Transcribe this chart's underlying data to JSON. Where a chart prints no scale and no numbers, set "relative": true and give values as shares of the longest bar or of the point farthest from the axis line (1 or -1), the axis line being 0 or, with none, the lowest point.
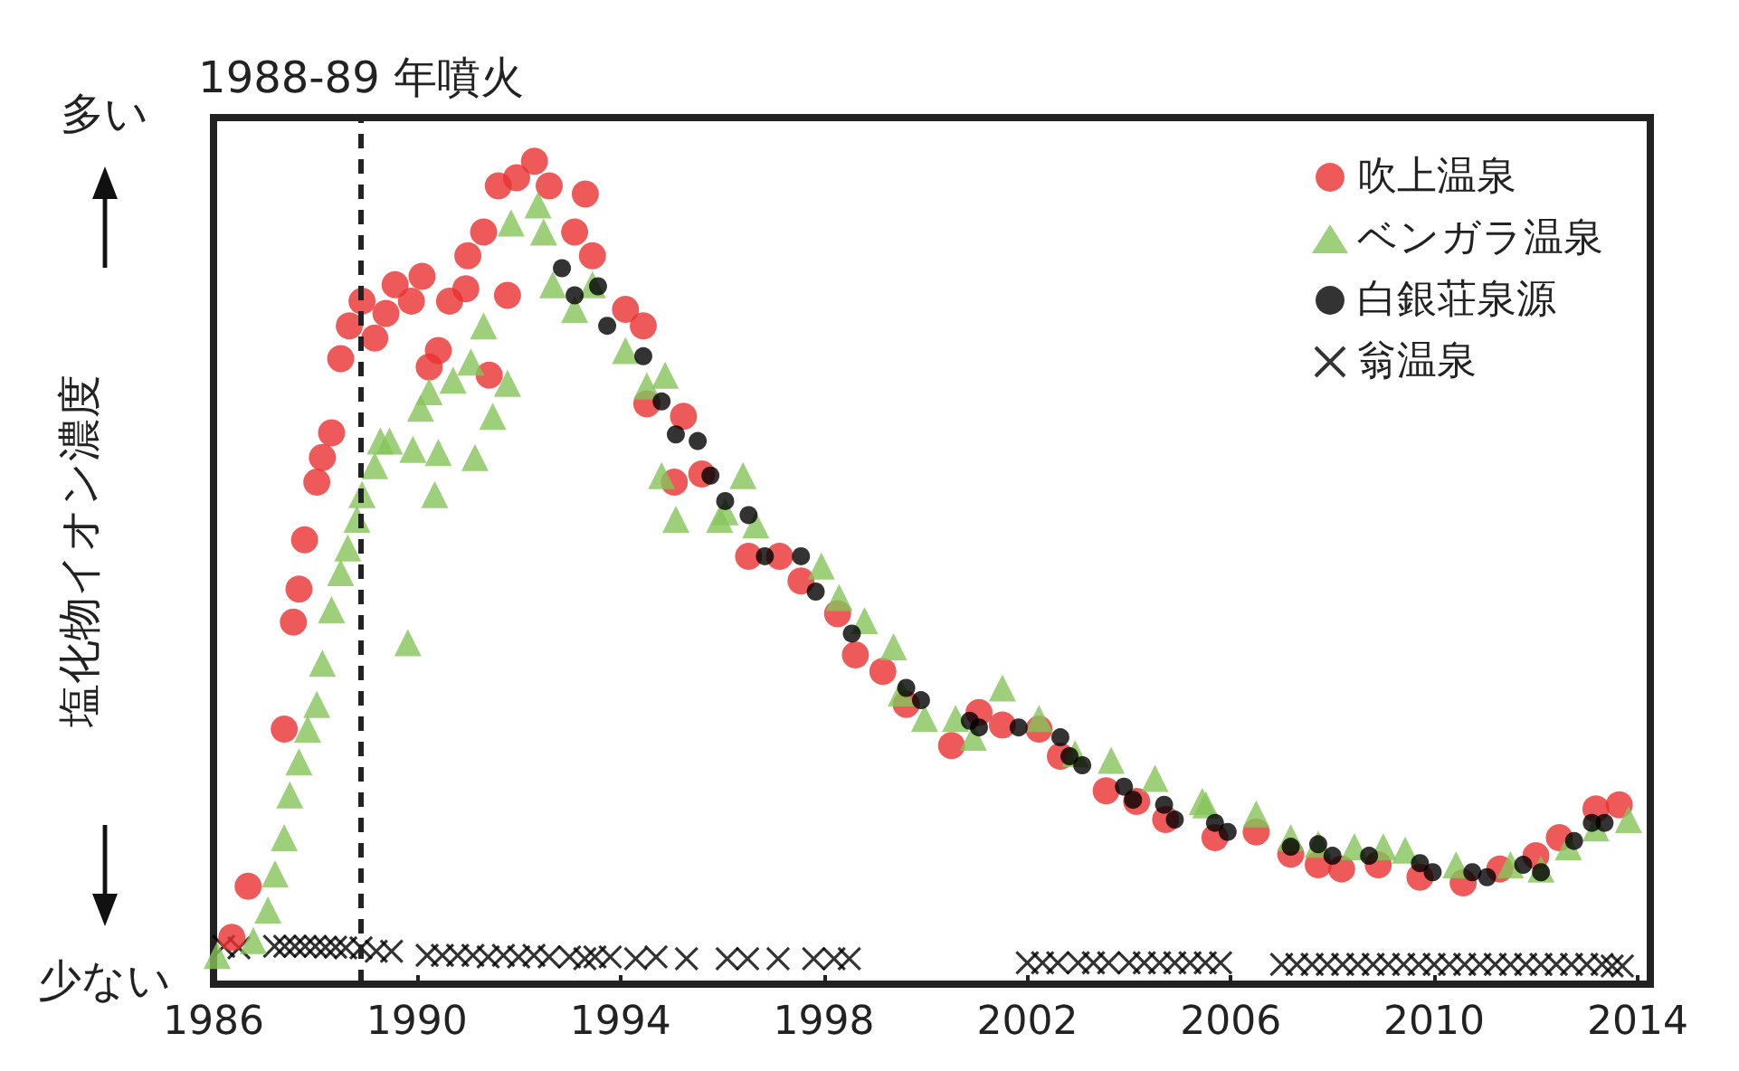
{
  "chart_data": {
    "type": "scatter",
    "relative": true,
    "ylabel": "塩化物イオン濃度",
    "annotations": [
      "多い",
      "少ない"
    ],
    "xlim": [
      1986,
      2014.25
    ],
    "xticks": [
      1986,
      1990,
      1994,
      1998,
      2002,
      2006,
      2010,
      2014
    ],
    "legend": "top right",
    "grid": false,
    "ref_lines": [
      {
        "axis": "x",
        "value": 1988.9,
        "label": "1988-89 年噴火",
        "color": "#222222",
        "line_style": "dashed"
      }
    ],
    "series": [
      {
        "name": "吹上温泉",
        "color": "#e8312f",
        "marker": "circle",
        "x": [
          1986.36,
          1986.68,
          1987.39,
          1987.57,
          1987.68,
          1987.79,
          1988.03,
          1988.14,
          1988.32,
          1988.5,
          1988.67,
          1988.92,
          1989.17,
          1989.39,
          1989.57,
          1989.89,
          1990.1,
          1990.24,
          1990.42,
          1990.64,
          1990.96,
          1991.0,
          1991.31,
          1991.42,
          1991.6,
          1991.78,
          1991.96,
          1992.31,
          1992.6,
          1993.1,
          1993.31,
          1993.45,
          1994.1,
          1994.45,
          1994.52,
          1995.06,
          1995.24,
          1995.6,
          1996.52,
          1997.13,
          1997.55,
          1998.27,
          1998.62,
          1999.16,
          1999.62,
          2000.51,
          2001.05,
          2001.51,
          2002.23,
          2002.65,
          2003.55,
          2004.15,
          2004.72,
          2005.69,
          2006.5,
          2007.18,
          2007.72,
          2008.18,
          2008.9,
          2009.72,
          2010.57,
          2011.29,
          2012.0,
          2012.46,
          2013.18,
          2013.64
        ],
        "values": [
          0.057,
          0.119,
          0.31,
          0.44,
          0.48,
          0.54,
          0.61,
          0.64,
          0.67,
          0.76,
          0.8,
          0.83,
          0.785,
          0.815,
          0.85,
          0.83,
          0.86,
          0.75,
          0.77,
          0.83,
          0.845,
          0.885,
          0.914,
          0.74,
          0.97,
          0.837,
          0.98,
          1.0,
          0.97,
          0.914,
          0.96,
          0.885,
          0.82,
          0.8,
          0.705,
          0.61,
          0.69,
          0.62,
          0.52,
          0.52,
          0.49,
          0.45,
          0.4,
          0.38,
          0.34,
          0.29,
          0.33,
          0.315,
          0.31,
          0.277,
          0.235,
          0.222,
          0.2,
          0.178,
          0.185,
          0.158,
          0.145,
          0.14,
          0.145,
          0.13,
          0.123,
          0.14,
          0.156,
          0.178,
          0.213,
          0.218
        ]
      },
      {
        "name": "ベンガラ温泉",
        "color": "#86c45a",
        "marker": "triangle",
        "x": [
          1986.07,
          1986.78,
          1987.07,
          1987.21,
          1987.39,
          1987.5,
          1987.68,
          1987.85,
          1988.03,
          1988.14,
          1988.32,
          1988.5,
          1988.64,
          1988.82,
          1988.92,
          1989.17,
          1989.28,
          1989.46,
          1989.82,
          1989.92,
          1990.07,
          1990.24,
          1990.35,
          1990.42,
          1990.71,
          1991.06,
          1991.14,
          1991.31,
          1991.49,
          1991.78,
          1991.85,
          1992.38,
          1992.49,
          1992.67,
          1993.1,
          1993.45,
          1994.1,
          1994.52,
          1994.81,
          1994.88,
          1995.09,
          1995.95,
          1996.06,
          1996.41,
          1996.66,
          1997.95,
          1998.3,
          1998.8,
          1999.37,
          1999.52,
          1999.98,
          2000.59,
          2000.94,
          2001.51,
          2002.23,
          2002.94,
          2003.65,
          2004.51,
          2005.44,
          2005.51,
          2006.5,
          2007.18,
          2007.72,
          2008.43,
          2009.0,
          2009.43,
          2010.43,
          2011.5,
          2012.1,
          2012.64,
          2013.18,
          2013.82
        ],
        "values": [
          0.035,
          0.053,
          0.09,
          0.134,
          0.178,
          0.23,
          0.27,
          0.31,
          0.34,
          0.39,
          0.455,
          0.5,
          0.53,
          0.565,
          0.595,
          0.63,
          0.66,
          0.66,
          0.415,
          0.65,
          0.7,
          0.72,
          0.595,
          0.646,
          0.734,
          0.756,
          0.64,
          0.8,
          0.69,
          0.73,
          0.925,
          0.947,
          0.914,
          0.85,
          0.82,
          0.85,
          0.77,
          0.727,
          0.618,
          0.74,
          0.565,
          0.565,
          0.574,
          0.618,
          0.558,
          0.508,
          0.47,
          0.442,
          0.41,
          0.354,
          0.323,
          0.323,
          0.3,
          0.36,
          0.323,
          0.28,
          0.272,
          0.25,
          0.222,
          0.218,
          0.207,
          0.178,
          0.17,
          0.167,
          0.167,
          0.163,
          0.145,
          0.145,
          0.14,
          0.167,
          0.19,
          0.2
        ]
      },
      {
        "name": "白銀荘泉源",
        "color": "#000000",
        "marker": "circle",
        "x": [
          1992.85,
          1993.1,
          1993.56,
          1993.74,
          1994.45,
          1994.81,
          1995.09,
          1995.52,
          1995.77,
          1996.06,
          1996.52,
          1996.84,
          1997.55,
          1997.84,
          1998.55,
          1999.62,
          1999.91,
          2000.87,
          2001.05,
          2001.83,
          2002.65,
          2002.83,
          2003.08,
          2003.9,
          2004.08,
          2004.69,
          2004.9,
          2005.69,
          2005.94,
          2007.18,
          2007.72,
          2008.0,
          2008.72,
          2009.72,
          2009.97,
          2010.75,
          2011.04,
          2011.75,
          2012.1,
          2012.75,
          2013.1,
          2013.35
        ],
        "values": [
          0.87,
          0.837,
          0.848,
          0.8,
          0.763,
          0.708,
          0.668,
          0.66,
          0.618,
          0.587,
          0.57,
          0.52,
          0.52,
          0.477,
          0.426,
          0.36,
          0.345,
          0.32,
          0.312,
          0.312,
          0.3,
          0.277,
          0.266,
          0.24,
          0.224,
          0.218,
          0.2,
          0.196,
          0.185,
          0.167,
          0.17,
          0.156,
          0.156,
          0.147,
          0.136,
          0.136,
          0.13,
          0.145,
          0.136,
          0.174,
          0.196,
          0.196
        ]
      },
      {
        "name": "翁温泉",
        "color": "#000000",
        "marker": "cross",
        "x": [
          1986.2,
          1986.5,
          1987.2,
          1987.4,
          1987.6,
          1987.8,
          1988.0,
          1988.2,
          1988.4,
          1988.6,
          1988.9,
          1989.2,
          1989.5,
          1990.2,
          1990.5,
          1990.8,
          1991.1,
          1991.4,
          1991.7,
          1992.0,
          1992.3,
          1992.6,
          1993.0,
          1993.3,
          1993.5,
          1993.8,
          1994.3,
          1994.7,
          1995.3,
          1996.1,
          1996.5,
          1997.1,
          1997.8,
          1998.2,
          1998.5,
          2002.0,
          2002.3,
          2002.6,
          2003.0,
          2003.3,
          2003.6,
          2004.0,
          2004.3,
          2004.6,
          2004.9,
          2005.2,
          2005.5,
          2005.8,
          2007.0,
          2007.3,
          2007.6,
          2007.9,
          2008.2,
          2008.5,
          2008.8,
          2009.1,
          2009.4,
          2009.7,
          2010.0,
          2010.3,
          2010.6,
          2010.9,
          2011.2,
          2011.5,
          2011.8,
          2012.1,
          2012.4,
          2012.7,
          2013.0,
          2013.3,
          2013.5,
          2013.7
        ],
        "values": [
          0.046,
          0.044,
          0.046,
          0.046,
          0.046,
          0.046,
          0.046,
          0.045,
          0.045,
          0.044,
          0.044,
          0.04,
          0.04,
          0.035,
          0.035,
          0.035,
          0.035,
          0.033,
          0.035,
          0.033,
          0.035,
          0.033,
          0.033,
          0.031,
          0.033,
          0.033,
          0.031,
          0.033,
          0.031,
          0.031,
          0.031,
          0.031,
          0.031,
          0.031,
          0.031,
          0.026,
          0.026,
          0.026,
          0.026,
          0.026,
          0.026,
          0.026,
          0.026,
          0.026,
          0.026,
          0.026,
          0.026,
          0.026,
          0.024,
          0.024,
          0.024,
          0.024,
          0.024,
          0.024,
          0.024,
          0.024,
          0.024,
          0.024,
          0.024,
          0.024,
          0.024,
          0.024,
          0.024,
          0.024,
          0.024,
          0.024,
          0.024,
          0.024,
          0.024,
          0.024,
          0.022,
          0.022
        ]
      }
    ]
  }
}
